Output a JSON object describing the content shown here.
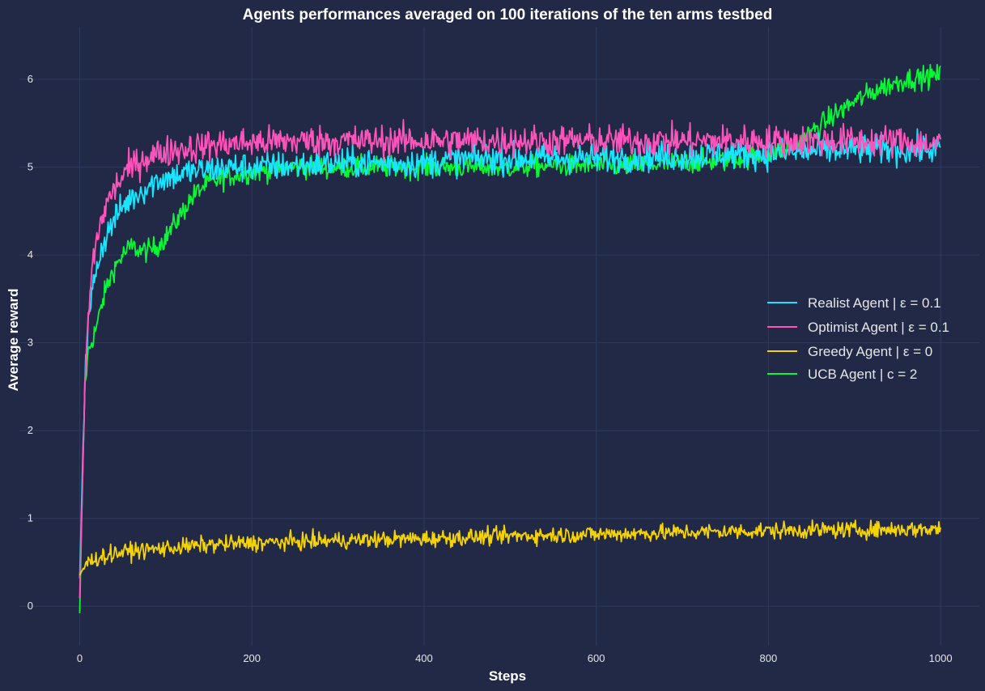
{
  "chart_data": {
    "type": "line",
    "title": "Agents performances averaged on 100 iterations of the ten arms testbed",
    "xlabel": "Steps",
    "ylabel": "Average reward",
    "xlim": [
      -70,
      1045
    ],
    "ylim": [
      -0.45,
      6.6
    ],
    "xticks": [
      0,
      200,
      400,
      600,
      800,
      1000
    ],
    "yticks": [
      0,
      1,
      2,
      3,
      4,
      5,
      6
    ],
    "grid": true,
    "legend_position": "center-right",
    "background": "#212946",
    "series": [
      {
        "name": "Realist Agent | ε = 0.1",
        "color": "#18e5ff",
        "x": [
          0,
          3,
          6,
          10,
          15,
          20,
          30,
          40,
          50,
          60,
          75,
          90,
          110,
          130,
          150,
          175,
          200,
          250,
          300,
          350,
          400,
          450,
          500,
          550,
          600,
          650,
          700,
          750,
          800,
          850,
          900,
          950,
          1000
        ],
        "y": [
          0.3,
          1.5,
          2.6,
          3.2,
          3.6,
          3.9,
          4.2,
          4.4,
          4.55,
          4.65,
          4.75,
          4.85,
          4.9,
          4.95,
          4.97,
          5.0,
          5.0,
          5.02,
          5.05,
          5.05,
          5.05,
          5.1,
          5.1,
          5.1,
          5.1,
          5.12,
          5.12,
          5.15,
          5.15,
          5.18,
          5.2,
          5.2,
          5.2
        ],
        "noise": 0.16
      },
      {
        "name": "Optimist Agent | ε = 0.1",
        "color": "#fe53bb",
        "x": [
          0,
          3,
          6,
          10,
          15,
          20,
          30,
          40,
          50,
          60,
          75,
          90,
          110,
          130,
          150,
          175,
          200,
          250,
          300,
          350,
          400,
          450,
          500,
          550,
          600,
          650,
          700,
          750,
          800,
          850,
          900,
          950,
          1000
        ],
        "y": [
          0.1,
          1.3,
          2.5,
          3.3,
          3.9,
          4.2,
          4.55,
          4.75,
          4.9,
          5.0,
          5.1,
          5.15,
          5.2,
          5.22,
          5.25,
          5.27,
          5.28,
          5.3,
          5.3,
          5.3,
          5.3,
          5.3,
          5.3,
          5.3,
          5.3,
          5.3,
          5.3,
          5.3,
          5.3,
          5.3,
          5.3,
          5.3,
          5.25
        ],
        "noise": 0.17
      },
      {
        "name": "Greedy Agent | ε = 0",
        "color": "#f5d300",
        "x": [
          0,
          5,
          10,
          20,
          40,
          60,
          100,
          150,
          200,
          300,
          400,
          500,
          600,
          700,
          800,
          900,
          1000
        ],
        "y": [
          0.35,
          0.45,
          0.5,
          0.55,
          0.6,
          0.63,
          0.66,
          0.7,
          0.72,
          0.75,
          0.77,
          0.8,
          0.82,
          0.84,
          0.86,
          0.87,
          0.88
        ],
        "noise": 0.09
      },
      {
        "name": "UCB Agent | c = 2",
        "color": "#08f736",
        "x": [
          0,
          3,
          6,
          10,
          15,
          20,
          25,
          30,
          40,
          50,
          60,
          70,
          80,
          90,
          100,
          110,
          120,
          130,
          140,
          150,
          175,
          200,
          250,
          300,
          350,
          400,
          450,
          500,
          550,
          600,
          650,
          700,
          750,
          800,
          830,
          850,
          870,
          900,
          930,
          960,
          1000
        ],
        "y": [
          -0.1,
          1.3,
          2.5,
          2.9,
          3.05,
          3.2,
          3.4,
          3.6,
          3.85,
          4.0,
          4.1,
          4.05,
          4.05,
          4.1,
          4.2,
          4.35,
          4.5,
          4.65,
          4.75,
          4.82,
          4.9,
          4.95,
          5.0,
          5.0,
          5.0,
          5.0,
          5.0,
          5.0,
          5.02,
          5.02,
          5.02,
          5.05,
          5.08,
          5.15,
          5.25,
          5.4,
          5.55,
          5.75,
          5.9,
          6.0,
          6.05
        ],
        "noise": 0.12
      }
    ]
  }
}
